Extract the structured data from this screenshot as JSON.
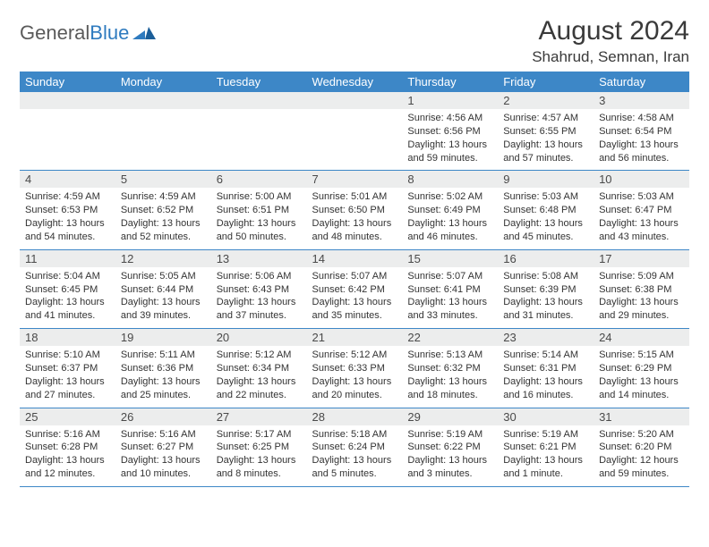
{
  "brand": {
    "name1": "General",
    "name2": "Blue"
  },
  "title": "August 2024",
  "location": "Shahrud, Semnan, Iran",
  "colors": {
    "header_bg": "#3d87c7",
    "header_fg": "#ffffff",
    "daynum_bg": "#eceded",
    "rule": "#3d87c7",
    "text": "#333333",
    "title": "#3a3a3a",
    "logo_gray": "#5a5a5a",
    "logo_blue": "#2f7bbf"
  },
  "weekdays": [
    "Sunday",
    "Monday",
    "Tuesday",
    "Wednesday",
    "Thursday",
    "Friday",
    "Saturday"
  ],
  "weeks": [
    [
      null,
      null,
      null,
      null,
      {
        "n": "1",
        "sunrise": "4:56 AM",
        "sunset": "6:56 PM",
        "daylight": "13 hours and 59 minutes."
      },
      {
        "n": "2",
        "sunrise": "4:57 AM",
        "sunset": "6:55 PM",
        "daylight": "13 hours and 57 minutes."
      },
      {
        "n": "3",
        "sunrise": "4:58 AM",
        "sunset": "6:54 PM",
        "daylight": "13 hours and 56 minutes."
      }
    ],
    [
      {
        "n": "4",
        "sunrise": "4:59 AM",
        "sunset": "6:53 PM",
        "daylight": "13 hours and 54 minutes."
      },
      {
        "n": "5",
        "sunrise": "4:59 AM",
        "sunset": "6:52 PM",
        "daylight": "13 hours and 52 minutes."
      },
      {
        "n": "6",
        "sunrise": "5:00 AM",
        "sunset": "6:51 PM",
        "daylight": "13 hours and 50 minutes."
      },
      {
        "n": "7",
        "sunrise": "5:01 AM",
        "sunset": "6:50 PM",
        "daylight": "13 hours and 48 minutes."
      },
      {
        "n": "8",
        "sunrise": "5:02 AM",
        "sunset": "6:49 PM",
        "daylight": "13 hours and 46 minutes."
      },
      {
        "n": "9",
        "sunrise": "5:03 AM",
        "sunset": "6:48 PM",
        "daylight": "13 hours and 45 minutes."
      },
      {
        "n": "10",
        "sunrise": "5:03 AM",
        "sunset": "6:47 PM",
        "daylight": "13 hours and 43 minutes."
      }
    ],
    [
      {
        "n": "11",
        "sunrise": "5:04 AM",
        "sunset": "6:45 PM",
        "daylight": "13 hours and 41 minutes."
      },
      {
        "n": "12",
        "sunrise": "5:05 AM",
        "sunset": "6:44 PM",
        "daylight": "13 hours and 39 minutes."
      },
      {
        "n": "13",
        "sunrise": "5:06 AM",
        "sunset": "6:43 PM",
        "daylight": "13 hours and 37 minutes."
      },
      {
        "n": "14",
        "sunrise": "5:07 AM",
        "sunset": "6:42 PM",
        "daylight": "13 hours and 35 minutes."
      },
      {
        "n": "15",
        "sunrise": "5:07 AM",
        "sunset": "6:41 PM",
        "daylight": "13 hours and 33 minutes."
      },
      {
        "n": "16",
        "sunrise": "5:08 AM",
        "sunset": "6:39 PM",
        "daylight": "13 hours and 31 minutes."
      },
      {
        "n": "17",
        "sunrise": "5:09 AM",
        "sunset": "6:38 PM",
        "daylight": "13 hours and 29 minutes."
      }
    ],
    [
      {
        "n": "18",
        "sunrise": "5:10 AM",
        "sunset": "6:37 PM",
        "daylight": "13 hours and 27 minutes."
      },
      {
        "n": "19",
        "sunrise": "5:11 AM",
        "sunset": "6:36 PM",
        "daylight": "13 hours and 25 minutes."
      },
      {
        "n": "20",
        "sunrise": "5:12 AM",
        "sunset": "6:34 PM",
        "daylight": "13 hours and 22 minutes."
      },
      {
        "n": "21",
        "sunrise": "5:12 AM",
        "sunset": "6:33 PM",
        "daylight": "13 hours and 20 minutes."
      },
      {
        "n": "22",
        "sunrise": "5:13 AM",
        "sunset": "6:32 PM",
        "daylight": "13 hours and 18 minutes."
      },
      {
        "n": "23",
        "sunrise": "5:14 AM",
        "sunset": "6:31 PM",
        "daylight": "13 hours and 16 minutes."
      },
      {
        "n": "24",
        "sunrise": "5:15 AM",
        "sunset": "6:29 PM",
        "daylight": "13 hours and 14 minutes."
      }
    ],
    [
      {
        "n": "25",
        "sunrise": "5:16 AM",
        "sunset": "6:28 PM",
        "daylight": "13 hours and 12 minutes."
      },
      {
        "n": "26",
        "sunrise": "5:16 AM",
        "sunset": "6:27 PM",
        "daylight": "13 hours and 10 minutes."
      },
      {
        "n": "27",
        "sunrise": "5:17 AM",
        "sunset": "6:25 PM",
        "daylight": "13 hours and 8 minutes."
      },
      {
        "n": "28",
        "sunrise": "5:18 AM",
        "sunset": "6:24 PM",
        "daylight": "13 hours and 5 minutes."
      },
      {
        "n": "29",
        "sunrise": "5:19 AM",
        "sunset": "6:22 PM",
        "daylight": "13 hours and 3 minutes."
      },
      {
        "n": "30",
        "sunrise": "5:19 AM",
        "sunset": "6:21 PM",
        "daylight": "13 hours and 1 minute."
      },
      {
        "n": "31",
        "sunrise": "5:20 AM",
        "sunset": "6:20 PM",
        "daylight": "12 hours and 59 minutes."
      }
    ]
  ],
  "labels": {
    "sunrise": "Sunrise:",
    "sunset": "Sunset:",
    "daylight": "Daylight:"
  }
}
